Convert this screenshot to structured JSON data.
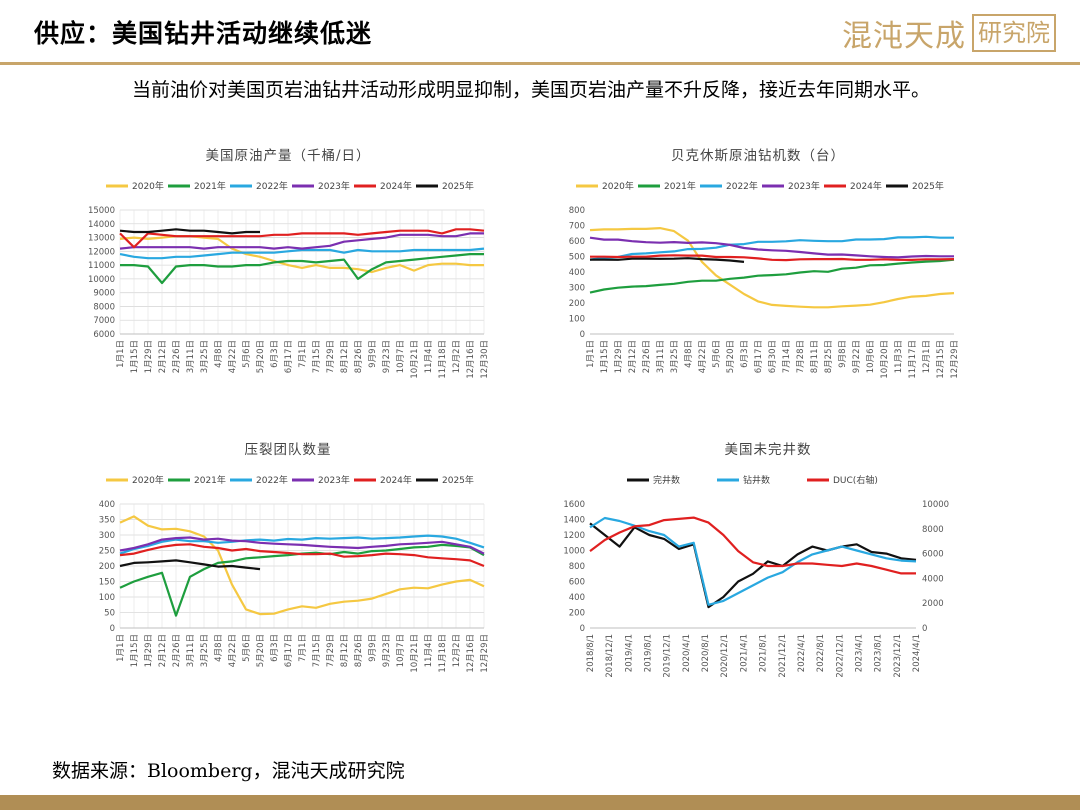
{
  "header": {
    "title": "供应：美国钻井活动继续低迷",
    "logo_text": "混沌天成",
    "logo_box_text": "研究院"
  },
  "paragraph": "当前油价对美国页岩油钻井活动形成明显抑制，美国页岩油产量不升反降，接近去年同期水平。",
  "source": "数据来源：Bloomberg，混沌天成研究院",
  "colors": {
    "2020年": "#f5c842",
    "2021年": "#1e9e3e",
    "2022年": "#29a8e0",
    "2023年": "#7b2fb0",
    "2024年": "#e02020",
    "2025年": "#111111",
    "accent": "#c8a56a"
  },
  "chart_data": [
    {
      "type": "line",
      "title": "美国原油产量（千桶/日）",
      "ylim": [
        6000,
        15000
      ],
      "yticks": [
        6000,
        7000,
        8000,
        9000,
        10000,
        11000,
        12000,
        13000,
        14000,
        15000
      ],
      "xlabels": [
        "1月1日",
        "1月15日",
        "1月29日",
        "2月12日",
        "2月26日",
        "3月11日",
        "3月25日",
        "4月8日",
        "4月22日",
        "5月6日",
        "5月20日",
        "6月3日",
        "6月17日",
        "7月1日",
        "7月15日",
        "7月29日",
        "8月12日",
        "8月26日",
        "9月9日",
        "9月23日",
        "10月7日",
        "10月21日",
        "11月4日",
        "11月18日",
        "12月2日",
        "12月16日",
        "12月30日"
      ],
      "grid": true,
      "legend": "top",
      "series": [
        {
          "name": "2020年",
          "values": [
            12900,
            13000,
            12900,
            13000,
            13100,
            13100,
            13000,
            12900,
            12200,
            11800,
            11600,
            11300,
            11000,
            10800,
            11000,
            10800,
            10800,
            10700,
            10500,
            10800,
            11000,
            10600,
            11000,
            11100,
            11100,
            11000,
            11000
          ]
        },
        {
          "name": "2021年",
          "values": [
            11000,
            11000,
            10900,
            9700,
            10900,
            11000,
            11000,
            10900,
            10900,
            11000,
            11000,
            11200,
            11300,
            11300,
            11200,
            11300,
            11400,
            10000,
            10700,
            11200,
            11300,
            11400,
            11500,
            11600,
            11700,
            11800,
            11800
          ]
        },
        {
          "name": "2022年",
          "values": [
            11800,
            11600,
            11500,
            11500,
            11600,
            11600,
            11700,
            11800,
            11900,
            11900,
            11900,
            11900,
            12000,
            12100,
            12100,
            12100,
            11900,
            12100,
            12000,
            12000,
            12000,
            12100,
            12100,
            12100,
            12100,
            12100,
            12200
          ]
        },
        {
          "name": "2023年",
          "values": [
            12200,
            12300,
            12300,
            12300,
            12300,
            12300,
            12200,
            12300,
            12300,
            12300,
            12300,
            12200,
            12300,
            12200,
            12300,
            12400,
            12700,
            12800,
            12900,
            13000,
            13200,
            13200,
            13200,
            13100,
            13100,
            13300,
            13300
          ]
        },
        {
          "name": "2024年",
          "values": [
            13300,
            12300,
            13300,
            13200,
            13100,
            13100,
            13100,
            13100,
            13100,
            13100,
            13100,
            13200,
            13200,
            13300,
            13300,
            13300,
            13300,
            13200,
            13300,
            13400,
            13500,
            13500,
            13500,
            13300,
            13600,
            13600,
            13500
          ]
        },
        {
          "name": "2025年",
          "values": [
            13500,
            13400,
            13400,
            13500,
            13600,
            13500,
            13500,
            13400,
            13300,
            13400,
            13400
          ]
        }
      ]
    },
    {
      "type": "line",
      "title": "贝克休斯原油钻机数（台）",
      "ylim": [
        0,
        800
      ],
      "yticks": [
        0,
        100,
        200,
        300,
        400,
        500,
        600,
        700,
        800
      ],
      "xlabels": [
        "1月1日",
        "1月15日",
        "1月29日",
        "2月12日",
        "2月26日",
        "3月11日",
        "3月25日",
        "4月8日",
        "4月22日",
        "5月6日",
        "5月20日",
        "6月3日",
        "6月17日",
        "6月30日",
        "7月14日",
        "7月28日",
        "8月11日",
        "8月25日",
        "9月8日",
        "9月22日",
        "10月6日",
        "10月20日",
        "11月3日",
        "11月17日",
        "12月1日",
        "12月15日",
        "12月29日"
      ],
      "grid": false,
      "legend": "top",
      "series": [
        {
          "name": "2020年",
          "values": [
            670,
            675,
            675,
            678,
            678,
            683,
            664,
            602,
            465,
            378,
            318,
            258,
            210,
            188,
            181,
            176,
            172,
            172,
            179,
            183,
            189,
            205,
            226,
            241,
            246,
            258,
            264
          ]
        },
        {
          "name": "2021年",
          "values": [
            267,
            287,
            299,
            306,
            309,
            317,
            324,
            337,
            344,
            344,
            356,
            364,
            376,
            380,
            385,
            397,
            405,
            401,
            421,
            428,
            443,
            445,
            454,
            461,
            467,
            471,
            480
          ]
        },
        {
          "name": "2022年",
          "values": [
            480,
            491,
            497,
            516,
            520,
            527,
            533,
            548,
            549,
            557,
            576,
            580,
            595,
            595,
            598,
            605,
            601,
            599,
            599,
            610,
            610,
            612,
            623,
            623,
            627,
            621,
            621
          ]
        },
        {
          "name": "2023年",
          "values": [
            621,
            609,
            609,
            599,
            592,
            589,
            593,
            588,
            591,
            586,
            575,
            555,
            545,
            540,
            537,
            529,
            520,
            512,
            513,
            507,
            501,
            497,
            494,
            500,
            503,
            501,
            501
          ]
        },
        {
          "name": "2024年",
          "values": [
            499,
            499,
            497,
            499,
            499,
            506,
            508,
            506,
            506,
            497,
            497,
            495,
            488,
            479,
            477,
            482,
            483,
            483,
            484,
            479,
            479,
            482,
            479,
            478,
            482,
            482,
            483
          ]
        },
        {
          "name": "2025年",
          "values": [
            480,
            480,
            479,
            486,
            486,
            485,
            486,
            489,
            483,
            480,
            474,
            465
          ]
        }
      ]
    },
    {
      "type": "line",
      "title": "压裂团队数量",
      "ylim": [
        0,
        400
      ],
      "yticks": [
        0,
        50,
        100,
        150,
        200,
        250,
        300,
        350,
        400
      ],
      "xlabels": [
        "1月1日",
        "1月15日",
        "1月29日",
        "2月12日",
        "2月26日",
        "3月11日",
        "3月25日",
        "4月8日",
        "4月22日",
        "5月6日",
        "5月20日",
        "6月3日",
        "6月17日",
        "7月1日",
        "7月15日",
        "7月29日",
        "8月12日",
        "8月26日",
        "9月9日",
        "9月23日",
        "10月7日",
        "10月21日",
        "11月4日",
        "11月18日",
        "12月2日",
        "12月16日",
        "12月29日"
      ],
      "grid": true,
      "legend": "top",
      "series": [
        {
          "name": "2020年",
          "values": [
            340,
            360,
            330,
            318,
            320,
            312,
            295,
            250,
            140,
            60,
            45,
            46,
            60,
            70,
            65,
            78,
            85,
            88,
            95,
            110,
            125,
            130,
            128,
            140,
            150,
            155,
            135
          ]
        },
        {
          "name": "2021年",
          "values": [
            130,
            150,
            165,
            178,
            40,
            165,
            190,
            210,
            215,
            225,
            228,
            232,
            235,
            240,
            243,
            238,
            245,
            240,
            248,
            250,
            255,
            260,
            262,
            268,
            265,
            260,
            235
          ]
        },
        {
          "name": "2022年",
          "values": [
            240,
            255,
            265,
            278,
            285,
            280,
            280,
            275,
            278,
            283,
            285,
            282,
            287,
            285,
            290,
            288,
            290,
            292,
            288,
            290,
            292,
            295,
            298,
            295,
            288,
            275,
            260
          ]
        },
        {
          "name": "2023年",
          "values": [
            250,
            258,
            270,
            285,
            290,
            292,
            285,
            288,
            282,
            280,
            275,
            272,
            270,
            268,
            265,
            262,
            260,
            258,
            262,
            265,
            270,
            272,
            275,
            278,
            270,
            262,
            240
          ]
        },
        {
          "name": "2024年",
          "values": [
            235,
            240,
            252,
            262,
            268,
            270,
            262,
            258,
            250,
            255,
            248,
            245,
            242,
            238,
            238,
            240,
            230,
            232,
            235,
            240,
            238,
            235,
            228,
            225,
            222,
            218,
            200
          ]
        },
        {
          "name": "2025年",
          "values": [
            200,
            210,
            212,
            215,
            218,
            212,
            205,
            198,
            200,
            195,
            190
          ]
        }
      ]
    },
    {
      "type": "line",
      "title": "美国未完井数",
      "ylim": [
        0,
        1600
      ],
      "y2lim": [
        0,
        10000
      ],
      "yticks": [
        0,
        200,
        400,
        600,
        800,
        1000,
        1200,
        1400,
        1600
      ],
      "y2ticks": [
        0,
        2000,
        4000,
        6000,
        8000,
        10000
      ],
      "xlabels": [
        "2018/8/1",
        "2018/12/1",
        "2019/4/1",
        "2019/8/1",
        "2019/12/1",
        "2020/4/1",
        "2020/8/1",
        "2020/12/1",
        "2021/4/1",
        "2021/8/1",
        "2021/12/1",
        "2022/4/1",
        "2022/8/1",
        "2022/12/1",
        "2023/4/1",
        "2023/8/1",
        "2023/12/1",
        "2024/4/1"
      ],
      "grid": false,
      "legend": "top",
      "series": [
        {
          "name": "完井数",
          "axis": "left",
          "values": [
            1350,
            1200,
            1050,
            1300,
            1200,
            1150,
            1020,
            1080,
            270,
            400,
            600,
            700,
            860,
            800,
            950,
            1050,
            1000,
            1050,
            1080,
            980,
            960,
            900,
            880
          ]
        },
        {
          "name": "钻井数",
          "axis": "left",
          "values": [
            1300,
            1420,
            1380,
            1320,
            1250,
            1200,
            1050,
            1100,
            300,
            350,
            450,
            550,
            650,
            720,
            850,
            950,
            1000,
            1050,
            1000,
            950,
            900,
            870,
            860
          ]
        },
        {
          "name": "DUC(右轴)",
          "axis": "right",
          "values": [
            6200,
            7100,
            7700,
            8200,
            8300,
            8700,
            8800,
            8900,
            8500,
            7500,
            6200,
            5300,
            5000,
            5000,
            5200,
            5200,
            5100,
            5000,
            5200,
            5000,
            4700,
            4400,
            4400
          ]
        }
      ],
      "series_colors": {
        "完井数": "#111111",
        "钻井数": "#29a8e0",
        "DUC(右轴)": "#e02020"
      }
    }
  ]
}
